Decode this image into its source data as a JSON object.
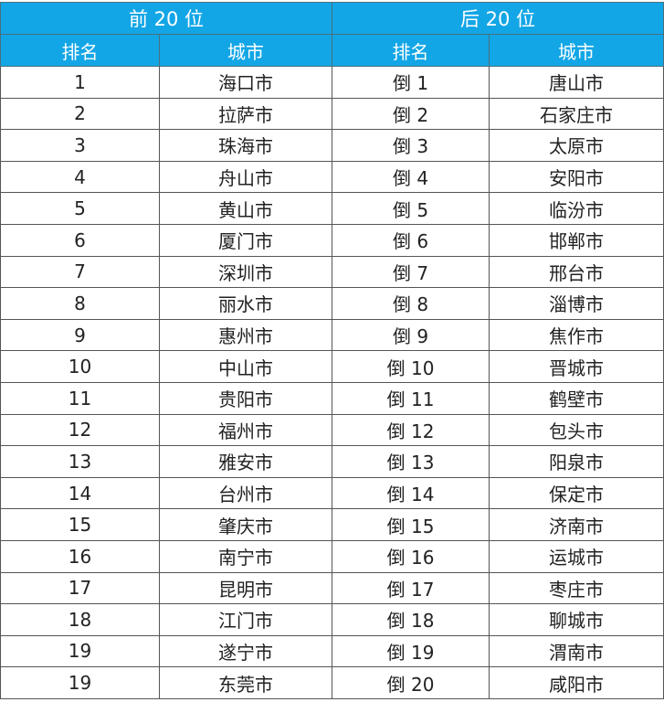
{
  "header": {
    "top_group": "前 20 位",
    "bottom_group": "后 20 位",
    "rank_label": "排名",
    "city_label": "城市"
  },
  "colors": {
    "header_bg": "#13a6e6",
    "header_text": "#ffffff"
  },
  "rows": [
    {
      "top_rank": "1",
      "top_city": "海口市",
      "bottom_rank": "倒 1",
      "bottom_city": "唐山市"
    },
    {
      "top_rank": "2",
      "top_city": "拉萨市",
      "bottom_rank": "倒 2",
      "bottom_city": "石家庄市"
    },
    {
      "top_rank": "3",
      "top_city": "珠海市",
      "bottom_rank": "倒 3",
      "bottom_city": "太原市"
    },
    {
      "top_rank": "4",
      "top_city": "舟山市",
      "bottom_rank": "倒 4",
      "bottom_city": "安阳市"
    },
    {
      "top_rank": "5",
      "top_city": "黄山市",
      "bottom_rank": "倒 5",
      "bottom_city": "临汾市"
    },
    {
      "top_rank": "6",
      "top_city": "厦门市",
      "bottom_rank": "倒 6",
      "bottom_city": "邯郸市"
    },
    {
      "top_rank": "7",
      "top_city": "深圳市",
      "bottom_rank": "倒 7",
      "bottom_city": "邢台市"
    },
    {
      "top_rank": "8",
      "top_city": "丽水市",
      "bottom_rank": "倒 8",
      "bottom_city": "淄博市"
    },
    {
      "top_rank": "9",
      "top_city": "惠州市",
      "bottom_rank": "倒 9",
      "bottom_city": "焦作市"
    },
    {
      "top_rank": "10",
      "top_city": "中山市",
      "bottom_rank": "倒 10",
      "bottom_city": "晋城市"
    },
    {
      "top_rank": "11",
      "top_city": "贵阳市",
      "bottom_rank": "倒 11",
      "bottom_city": "鹤壁市"
    },
    {
      "top_rank": "12",
      "top_city": "福州市",
      "bottom_rank": "倒 12",
      "bottom_city": "包头市"
    },
    {
      "top_rank": "13",
      "top_city": "雅安市",
      "bottom_rank": "倒 13",
      "bottom_city": "阳泉市"
    },
    {
      "top_rank": "14",
      "top_city": "台州市",
      "bottom_rank": "倒 14",
      "bottom_city": "保定市"
    },
    {
      "top_rank": "15",
      "top_city": "肇庆市",
      "bottom_rank": "倒 15",
      "bottom_city": "济南市"
    },
    {
      "top_rank": "16",
      "top_city": "南宁市",
      "bottom_rank": "倒 16",
      "bottom_city": "运城市"
    },
    {
      "top_rank": "17",
      "top_city": "昆明市",
      "bottom_rank": "倒 17",
      "bottom_city": "枣庄市"
    },
    {
      "top_rank": "18",
      "top_city": "江门市",
      "bottom_rank": "倒 18",
      "bottom_city": "聊城市"
    },
    {
      "top_rank": "19",
      "top_city": "遂宁市",
      "bottom_rank": "倒 19",
      "bottom_city": "渭南市"
    },
    {
      "top_rank": "19",
      "top_city": "东莞市",
      "bottom_rank": "倒 20",
      "bottom_city": "咸阳市"
    }
  ]
}
